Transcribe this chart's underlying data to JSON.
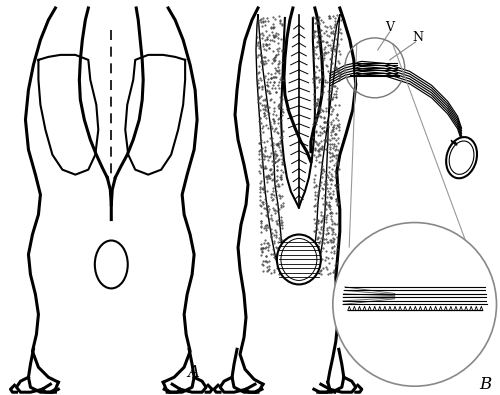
{
  "bg_color": "#ffffff",
  "line_color": "#000000",
  "label_A": "A",
  "label_B": "B",
  "label_V": "V",
  "label_N": "N",
  "fig_width": 5.0,
  "fig_height": 3.95,
  "dpi": 100
}
